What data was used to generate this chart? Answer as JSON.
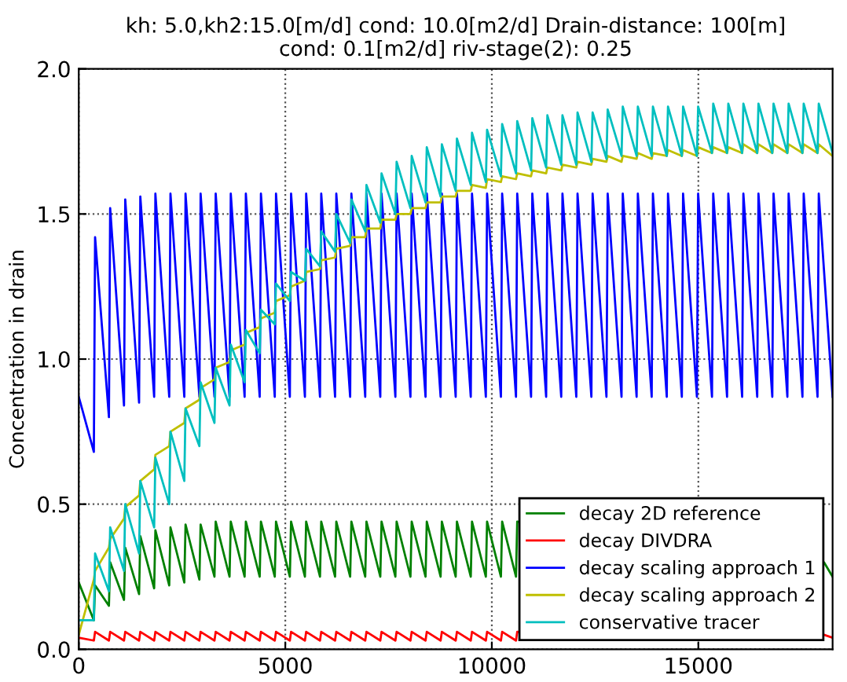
{
  "chart_data": {
    "type": "line",
    "title": "kh: 5.0,kh2:15.0[m/d] cond: 10.0[m2/d] Drain-distance: 100[m]\ncond: 0.1[m2/d] riv-stage(2): 0.25",
    "ylabel": "Concentration in drain",
    "x": [
      0,
      365,
      395,
      730,
      760,
      1095,
      1125,
      1460,
      1490,
      1825,
      1855,
      2190,
      2220,
      2555,
      2585,
      2920,
      2950,
      3285,
      3315,
      3650,
      3680,
      4015,
      4045,
      4380,
      4410,
      4745,
      4775,
      5110,
      5140,
      5475,
      5505,
      5840,
      5870,
      6205,
      6235,
      6570,
      6600,
      6935,
      6965,
      7300,
      7330,
      7665,
      7695,
      8030,
      8060,
      8395,
      8425,
      8760,
      8790,
      9125,
      9155,
      9490,
      9520,
      9855,
      9885,
      10220,
      10250,
      10585,
      10615,
      10950,
      10980,
      11315,
      11345,
      11680,
      11710,
      12045,
      12075,
      12410,
      12440,
      12775,
      12805,
      13140,
      13170,
      13505,
      13535,
      13870,
      13900,
      14235,
      14265,
      14600,
      14630,
      14965,
      14995,
      15330,
      15360,
      15695,
      15725,
      16060,
      16090,
      16425,
      16455,
      16790,
      16820,
      17155,
      17185,
      17520,
      17550,
      17885,
      17915,
      18250
    ],
    "series": [
      {
        "name": "decay 2D reference",
        "color": "#008000",
        "x": [
          0,
          365,
          395,
          730,
          760,
          1095,
          1125,
          1460,
          1490,
          1825,
          1855,
          2190,
          2220,
          2555,
          2585,
          2920,
          2950,
          3285,
          3315,
          3650,
          3680,
          4015,
          4045,
          4380,
          4410,
          4745,
          4775,
          5110,
          5140,
          5475,
          5505,
          5840,
          5870,
          6205,
          6235,
          6570,
          6600,
          6935,
          6965,
          7300,
          7330,
          7665,
          7695,
          8030,
          8060,
          8395,
          8425,
          8760,
          8790,
          9125,
          9155,
          9490,
          9520,
          9855,
          9885,
          10220,
          10250,
          10585,
          10615,
          10950,
          10980,
          11315,
          11345,
          11680,
          11710,
          12045,
          12075,
          12410,
          12440,
          12775,
          12805,
          13140,
          13170,
          13505,
          13535,
          13870,
          13900,
          14235,
          14265,
          14600,
          14630,
          14965,
          14995,
          15330,
          15360,
          15695,
          15725,
          16060,
          16090,
          16425,
          16455,
          16790,
          16820,
          17155,
          17185,
          17520,
          17550,
          17885,
          18040,
          18250
        ],
        "values": [
          0.23,
          0.1,
          0.22,
          0.15,
          0.3,
          0.17,
          0.35,
          0.19,
          0.39,
          0.21,
          0.41,
          0.22,
          0.42,
          0.23,
          0.43,
          0.24,
          0.43,
          0.25,
          0.44,
          0.25,
          0.44,
          0.25,
          0.44,
          0.25,
          0.44,
          0.25,
          0.44,
          0.25,
          0.44,
          0.25,
          0.44,
          0.25,
          0.44,
          0.25,
          0.44,
          0.25,
          0.44,
          0.25,
          0.44,
          0.25,
          0.44,
          0.25,
          0.44,
          0.25,
          0.44,
          0.25,
          0.44,
          0.25,
          0.44,
          0.25,
          0.44,
          0.25,
          0.44,
          0.25,
          0.44,
          0.25,
          0.44,
          0.25,
          0.44,
          null,
          null,
          null,
          null,
          null,
          null,
          null,
          null,
          null,
          null,
          null,
          null,
          null,
          null,
          null,
          null,
          null,
          null,
          null,
          null,
          null,
          null,
          null,
          null,
          null,
          null,
          null,
          null,
          null,
          null,
          null,
          null,
          null,
          null,
          null,
          null,
          null,
          null,
          null,
          0.3,
          0.25
        ]
      },
      {
        "name": "decay DIVDRA",
        "color": "#ff0000",
        "x": [
          0,
          365,
          395,
          730,
          760,
          1095,
          1125,
          1460,
          1490,
          1825,
          1855,
          2190,
          2220,
          2555,
          2585,
          2920,
          2950,
          3285,
          3315,
          3650,
          3680,
          4015,
          4045,
          4380,
          4410,
          4745,
          4775,
          5110,
          5140,
          5475,
          5505,
          5840,
          5870,
          6205,
          6235,
          6570,
          6600,
          6935,
          6965,
          7300,
          7330,
          7665,
          7695,
          8030,
          8060,
          8395,
          8425,
          8760,
          8790,
          9125,
          9155,
          9490,
          9520,
          9855,
          9885,
          10220,
          10250,
          10585,
          10615,
          10950,
          10980,
          11315,
          11345,
          11680,
          11710,
          12045,
          12075,
          12410,
          12440,
          12775,
          12805,
          13140,
          13170,
          13505,
          13535,
          13870,
          13900,
          14235,
          14265,
          14600,
          14630,
          14965,
          14995,
          15330,
          15360,
          15695,
          15725,
          16060,
          16090,
          16425,
          16455,
          16790,
          16820,
          17155,
          17185,
          17520,
          17550,
          17885,
          18040,
          18250
        ],
        "values": [
          0.04,
          0.03,
          0.06,
          0.03,
          0.06,
          0.03,
          0.06,
          0.03,
          0.06,
          0.03,
          0.06,
          0.03,
          0.06,
          0.03,
          0.06,
          0.03,
          0.06,
          0.03,
          0.06,
          0.03,
          0.06,
          0.03,
          0.06,
          0.03,
          0.06,
          0.03,
          0.06,
          0.03,
          0.06,
          0.03,
          0.06,
          0.03,
          0.06,
          0.03,
          0.06,
          0.03,
          0.06,
          0.03,
          0.06,
          0.03,
          0.06,
          0.03,
          0.06,
          0.03,
          0.06,
          0.03,
          0.06,
          0.03,
          0.06,
          0.03,
          0.06,
          0.03,
          0.06,
          0.03,
          0.06,
          0.03,
          0.06,
          0.03,
          0.06,
          null,
          null,
          null,
          null,
          null,
          null,
          null,
          null,
          null,
          null,
          null,
          null,
          null,
          null,
          null,
          null,
          null,
          null,
          null,
          null,
          null,
          null,
          null,
          null,
          null,
          null,
          null,
          null,
          null,
          null,
          null,
          null,
          null,
          null,
          null,
          null,
          null,
          null,
          null,
          0.05,
          0.04
        ]
      },
      {
        "name": "decay scaling approach 1",
        "color": "#0000ff",
        "values": [
          0.87,
          0.68,
          1.42,
          0.8,
          1.52,
          0.84,
          1.55,
          0.85,
          1.56,
          0.87,
          1.57,
          0.87,
          1.57,
          0.87,
          1.57,
          0.87,
          1.57,
          0.87,
          1.57,
          0.87,
          1.57,
          0.87,
          1.57,
          0.87,
          1.57,
          0.87,
          1.57,
          0.87,
          1.57,
          0.87,
          1.57,
          0.87,
          1.57,
          0.87,
          1.57,
          0.87,
          1.57,
          0.87,
          1.57,
          0.87,
          1.57,
          0.87,
          1.57,
          0.87,
          1.57,
          0.87,
          1.57,
          0.87,
          1.57,
          0.87,
          1.57,
          0.87,
          1.57,
          0.87,
          1.57,
          0.87,
          1.57,
          0.87,
          1.57,
          0.87,
          1.57,
          0.87,
          1.57,
          0.87,
          1.57,
          0.87,
          1.57,
          0.87,
          1.57,
          0.87,
          1.57,
          0.87,
          1.57,
          0.87,
          1.57,
          0.87,
          1.57,
          0.87,
          1.57,
          0.87,
          1.57,
          0.87,
          1.57,
          0.87,
          1.57,
          0.87,
          1.57,
          0.87,
          1.57,
          0.87,
          1.57,
          0.87,
          1.57,
          0.87,
          1.57,
          0.87,
          1.57,
          0.87,
          1.57,
          0.87
        ]
      },
      {
        "name": "decay scaling approach 2",
        "color": "#bfbf00",
        "values": [
          0.05,
          0.24,
          0.27,
          0.35,
          0.38,
          0.45,
          0.49,
          0.53,
          0.58,
          0.62,
          0.67,
          0.7,
          0.75,
          0.78,
          0.83,
          0.86,
          0.9,
          0.93,
          0.97,
          0.99,
          1.03,
          1.05,
          1.09,
          1.11,
          1.14,
          1.16,
          1.2,
          1.22,
          1.25,
          1.27,
          1.3,
          1.31,
          1.34,
          1.35,
          1.38,
          1.39,
          1.42,
          1.42,
          1.45,
          1.45,
          1.48,
          1.48,
          1.5,
          1.5,
          1.52,
          1.52,
          1.54,
          1.54,
          1.56,
          1.56,
          1.58,
          1.58,
          1.6,
          1.59,
          1.62,
          1.61,
          1.63,
          1.62,
          1.64,
          1.63,
          1.65,
          1.64,
          1.66,
          1.65,
          1.67,
          1.66,
          1.68,
          1.67,
          1.69,
          1.68,
          1.7,
          1.68,
          1.7,
          1.69,
          1.71,
          1.69,
          1.71,
          1.7,
          1.72,
          1.7,
          1.72,
          1.7,
          1.73,
          1.71,
          1.73,
          1.71,
          1.73,
          1.71,
          1.74,
          1.71,
          1.74,
          1.71,
          1.74,
          1.71,
          1.74,
          1.71,
          1.74,
          1.71,
          1.74,
          1.7
        ]
      },
      {
        "name": "conservative tracer",
        "color": "#00bfbf",
        "values": [
          0.1,
          0.1,
          0.33,
          0.2,
          0.42,
          0.27,
          0.5,
          0.33,
          0.58,
          0.42,
          0.66,
          0.5,
          0.75,
          0.58,
          0.83,
          0.7,
          0.92,
          0.78,
          0.97,
          0.84,
          1.05,
          0.92,
          1.1,
          1.02,
          1.17,
          1.12,
          1.26,
          1.2,
          1.3,
          1.27,
          1.38,
          1.32,
          1.44,
          1.37,
          1.5,
          1.4,
          1.55,
          1.44,
          1.6,
          1.47,
          1.64,
          1.5,
          1.68,
          1.52,
          1.7,
          1.54,
          1.73,
          1.56,
          1.74,
          1.58,
          1.76,
          1.6,
          1.78,
          1.61,
          1.79,
          1.63,
          1.81,
          1.64,
          1.82,
          1.65,
          1.83,
          1.66,
          1.84,
          1.67,
          1.84,
          1.67,
          1.85,
          1.68,
          1.85,
          1.69,
          1.86,
          1.7,
          1.87,
          1.7,
          1.87,
          1.7,
          1.87,
          1.7,
          1.87,
          1.7,
          1.87,
          1.7,
          1.87,
          1.71,
          1.88,
          1.71,
          1.88,
          1.71,
          1.88,
          1.71,
          1.88,
          1.71,
          1.88,
          1.71,
          1.88,
          1.71,
          1.88,
          1.71,
          1.88,
          1.71
        ]
      }
    ],
    "xlim": [
      0,
      18250
    ],
    "xticks": [
      0,
      5000,
      10000,
      15000
    ],
    "ylim": [
      0,
      2.0
    ],
    "yticks": [
      {
        "value": 0,
        "label": "0.0"
      },
      {
        "value": 0.5,
        "label": "0.5"
      },
      {
        "value": 1.0,
        "label": "1.0"
      },
      {
        "value": 1.5,
        "label": "1.5"
      },
      {
        "value": 2.0,
        "label": "2.0"
      }
    ],
    "grid": true,
    "legend": "bottom right"
  }
}
